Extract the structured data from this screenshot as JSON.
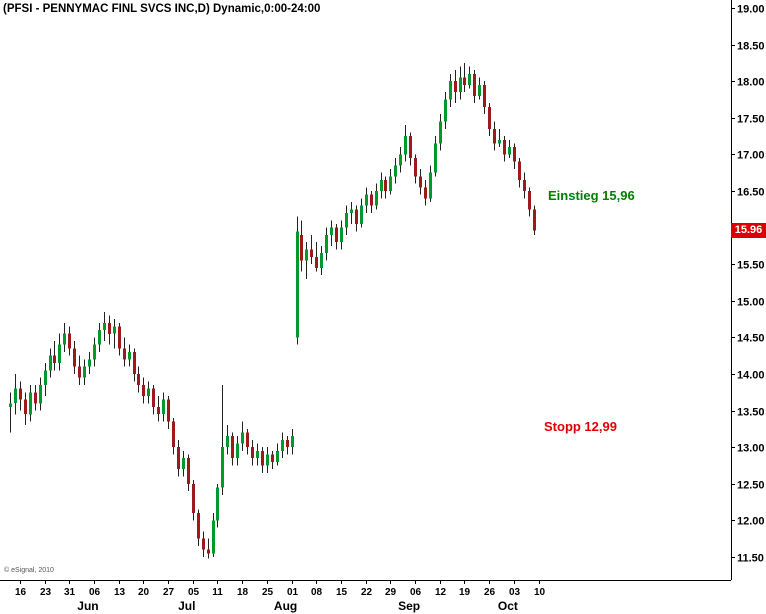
{
  "header": {
    "title": "(PFSI - PENNYMAC FINL SVCS INC,D) Dynamic,0:00-24:00"
  },
  "footer_note": "© eSignal, 2010",
  "annotations": {
    "entry": {
      "label": "Einstieg 15,96",
      "price": 15.96,
      "color": "#008000"
    },
    "stop": {
      "label": "Stopp 12,99",
      "price": 12.99,
      "color": "#e00000"
    }
  },
  "price_tag": {
    "value": "15.96",
    "bg": "#dd0000",
    "text_color": "#ffffff"
  },
  "chart_data": {
    "type": "candlestick",
    "symbol": "PFSI",
    "title": "(PFSI - PENNYMAC FINL SVCS INC,D) Dynamic,0:00-24:00",
    "interval": "D",
    "grid": false,
    "ylim": [
      11.5,
      19.0
    ],
    "y_tick_step": 0.5,
    "y_tick_labels": [
      "19.00",
      "18.50",
      "18.00",
      "17.50",
      "17.00",
      "16.50",
      "15.50",
      "15.00",
      "14.50",
      "14.00",
      "13.50",
      "13.00",
      "12.50",
      "12.00",
      "11.50"
    ],
    "x_tick_labels": [
      "16",
      "23",
      "31",
      "06",
      "13",
      "20",
      "27",
      "05",
      "11",
      "18",
      "25",
      "01",
      "08",
      "15",
      "22",
      "29",
      "06",
      "12",
      "19",
      "26",
      "03",
      "10"
    ],
    "months": [
      {
        "label": "Jun",
        "tick": 3
      },
      {
        "label": "Jul",
        "tick": 7
      },
      {
        "label": "Aug",
        "tick": 11
      },
      {
        "label": "Sep",
        "tick": 16
      },
      {
        "label": "Oct",
        "tick": 20
      }
    ],
    "last_price": 15.96,
    "entry_price": 15.96,
    "stop_price": 12.99,
    "up_color": "#009a2c",
    "down_color": "#9e1a1a",
    "wick_color": "#222222",
    "candles_ohlc": [
      [
        13.55,
        13.75,
        13.2,
        13.6
      ],
      [
        13.6,
        14.0,
        13.45,
        13.8
      ],
      [
        13.8,
        13.9,
        13.5,
        13.65
      ],
      [
        13.65,
        13.75,
        13.3,
        13.45
      ],
      [
        13.45,
        13.85,
        13.35,
        13.75
      ],
      [
        13.75,
        13.85,
        13.5,
        13.6
      ],
      [
        13.6,
        13.95,
        13.5,
        13.85
      ],
      [
        13.85,
        14.15,
        13.7,
        14.05
      ],
      [
        14.05,
        14.35,
        13.95,
        14.25
      ],
      [
        14.25,
        14.45,
        14.05,
        14.15
      ],
      [
        14.15,
        14.55,
        14.05,
        14.4
      ],
      [
        14.4,
        14.7,
        14.3,
        14.55
      ],
      [
        14.55,
        14.65,
        14.25,
        14.35
      ],
      [
        14.35,
        14.45,
        14.0,
        14.1
      ],
      [
        14.1,
        14.25,
        13.85,
        13.95
      ],
      [
        13.95,
        14.2,
        13.85,
        14.1
      ],
      [
        14.1,
        14.3,
        14.0,
        14.2
      ],
      [
        14.2,
        14.5,
        14.1,
        14.4
      ],
      [
        14.4,
        14.7,
        14.3,
        14.6
      ],
      [
        14.6,
        14.85,
        14.45,
        14.7
      ],
      [
        14.7,
        14.8,
        14.4,
        14.55
      ],
      [
        14.55,
        14.75,
        14.35,
        14.65
      ],
      [
        14.65,
        14.7,
        14.25,
        14.35
      ],
      [
        14.35,
        14.5,
        14.1,
        14.2
      ],
      [
        14.2,
        14.4,
        14.1,
        14.3
      ],
      [
        14.3,
        14.35,
        13.9,
        14.0
      ],
      [
        14.0,
        14.1,
        13.75,
        13.85
      ],
      [
        13.85,
        13.95,
        13.6,
        13.7
      ],
      [
        13.7,
        13.9,
        13.6,
        13.8
      ],
      [
        13.8,
        13.85,
        13.45,
        13.55
      ],
      [
        13.55,
        13.7,
        13.35,
        13.45
      ],
      [
        13.45,
        13.75,
        13.35,
        13.65
      ],
      [
        13.65,
        13.7,
        13.25,
        13.35
      ],
      [
        13.35,
        13.4,
        12.9,
        13.0
      ],
      [
        13.0,
        13.1,
        12.6,
        12.7
      ],
      [
        12.7,
        12.95,
        12.6,
        12.85
      ],
      [
        12.85,
        12.9,
        12.4,
        12.5
      ],
      [
        12.5,
        12.55,
        12.0,
        12.1
      ],
      [
        12.1,
        12.15,
        11.65,
        11.75
      ],
      [
        11.75,
        11.85,
        11.5,
        11.6
      ],
      [
        11.6,
        11.75,
        11.48,
        11.55
      ],
      [
        11.55,
        12.1,
        11.5,
        12.0
      ],
      [
        12.0,
        12.5,
        11.9,
        12.45
      ],
      [
        12.45,
        13.85,
        12.35,
        13.0
      ],
      [
        13.0,
        13.3,
        12.9,
        13.15
      ],
      [
        13.15,
        13.2,
        12.75,
        12.85
      ],
      [
        12.85,
        13.15,
        12.75,
        13.05
      ],
      [
        13.05,
        13.35,
        12.95,
        13.2
      ],
      [
        13.2,
        13.25,
        12.9,
        13.0
      ],
      [
        13.0,
        13.1,
        12.75,
        12.85
      ],
      [
        12.85,
        13.05,
        12.75,
        12.95
      ],
      [
        12.95,
        13.0,
        12.65,
        12.75
      ],
      [
        12.75,
        13.0,
        12.65,
        12.9
      ],
      [
        12.9,
        12.95,
        12.7,
        12.8
      ],
      [
        12.8,
        13.05,
        12.75,
        12.95
      ],
      [
        12.95,
        13.2,
        12.85,
        13.1
      ],
      [
        13.1,
        13.15,
        12.9,
        13.0
      ],
      [
        13.0,
        13.25,
        12.9,
        13.15
      ],
      [
        14.5,
        16.15,
        14.4,
        15.95
      ],
      [
        15.9,
        16.1,
        15.4,
        15.55
      ],
      [
        15.55,
        15.8,
        15.3,
        15.7
      ],
      [
        15.7,
        15.9,
        15.5,
        15.6
      ],
      [
        15.6,
        15.8,
        15.4,
        15.45
      ],
      [
        15.45,
        15.75,
        15.35,
        15.65
      ],
      [
        15.65,
        16.0,
        15.55,
        15.9
      ],
      [
        15.9,
        16.1,
        15.75,
        16.0
      ],
      [
        16.0,
        16.05,
        15.7,
        15.8
      ],
      [
        15.8,
        16.1,
        15.7,
        16.0
      ],
      [
        16.0,
        16.3,
        15.9,
        16.2
      ],
      [
        16.2,
        16.35,
        16.05,
        16.25
      ],
      [
        16.25,
        16.3,
        15.95,
        16.05
      ],
      [
        16.05,
        16.4,
        16.0,
        16.3
      ],
      [
        16.3,
        16.55,
        16.2,
        16.45
      ],
      [
        16.45,
        16.5,
        16.2,
        16.3
      ],
      [
        16.3,
        16.6,
        16.25,
        16.5
      ],
      [
        16.5,
        16.75,
        16.4,
        16.65
      ],
      [
        16.65,
        16.7,
        16.4,
        16.5
      ],
      [
        16.5,
        16.8,
        16.45,
        16.7
      ],
      [
        16.7,
        16.95,
        16.6,
        16.85
      ],
      [
        16.85,
        17.1,
        16.75,
        17.0
      ],
      [
        17.0,
        17.4,
        16.9,
        17.25
      ],
      [
        17.25,
        17.3,
        16.85,
        16.95
      ],
      [
        16.95,
        17.0,
        16.6,
        16.7
      ],
      [
        16.7,
        16.8,
        16.45,
        16.55
      ],
      [
        16.55,
        16.65,
        16.3,
        16.4
      ],
      [
        16.4,
        16.85,
        16.35,
        16.75
      ],
      [
        16.75,
        17.25,
        16.7,
        17.15
      ],
      [
        17.15,
        17.55,
        17.05,
        17.45
      ],
      [
        17.45,
        17.85,
        17.35,
        17.75
      ],
      [
        17.75,
        18.1,
        17.65,
        18.0
      ],
      [
        18.0,
        18.15,
        17.7,
        17.85
      ],
      [
        17.85,
        18.2,
        17.75,
        18.05
      ],
      [
        18.05,
        18.25,
        17.85,
        17.95
      ],
      [
        17.95,
        18.2,
        17.9,
        18.1
      ],
      [
        18.1,
        18.15,
        17.7,
        17.8
      ],
      [
        17.8,
        18.05,
        17.75,
        17.95
      ],
      [
        17.95,
        18.0,
        17.55,
        17.65
      ],
      [
        17.65,
        17.7,
        17.25,
        17.35
      ],
      [
        17.35,
        17.45,
        17.05,
        17.15
      ],
      [
        17.15,
        17.35,
        17.1,
        17.2
      ],
      [
        17.2,
        17.25,
        16.9,
        17.0
      ],
      [
        17.0,
        17.2,
        16.95,
        17.1
      ],
      [
        17.1,
        17.15,
        16.8,
        16.9
      ],
      [
        16.9,
        16.95,
        16.55,
        16.65
      ],
      [
        16.65,
        16.75,
        16.4,
        16.5
      ],
      [
        16.5,
        16.55,
        16.15,
        16.25
      ],
      [
        16.25,
        16.3,
        15.9,
        15.96
      ]
    ]
  }
}
